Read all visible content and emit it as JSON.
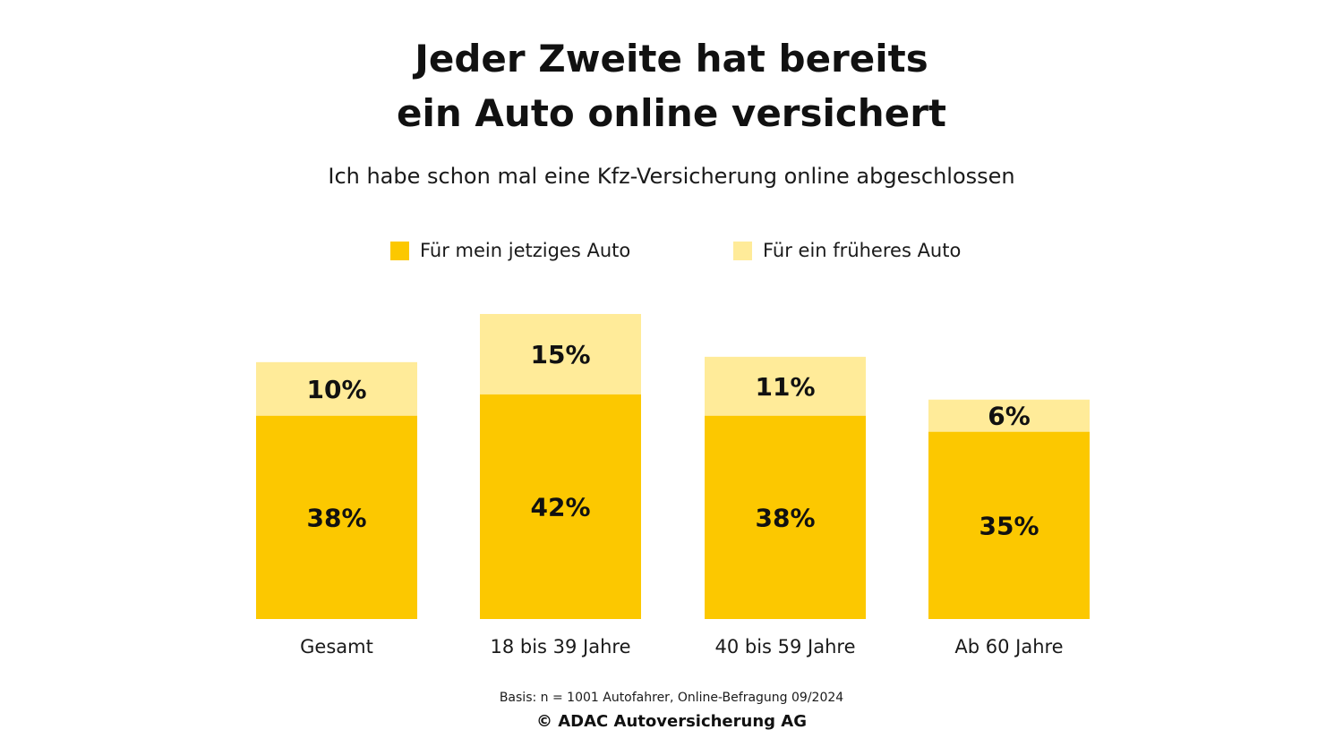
{
  "header": {
    "title_line1": "Jeder Zweite hat bereits",
    "title_line2": "ein Auto online versichert",
    "subtitle": "Ich habe schon mal eine Kfz-Versicherung online abgeschlossen"
  },
  "footer": {
    "source": "Basis: n = 1001 Autofahrer, Online-Befragung 09/2024",
    "copyright": "© ADAC Autoversicherung AG"
  },
  "colors": {
    "current": "#FCC800",
    "previous": "#FFEB99",
    "text": "#111111"
  },
  "chart_data": {
    "type": "bar",
    "stacked": true,
    "categories": [
      "Gesamt",
      "18 bis 39 Jahre",
      "40 bis 59 Jahre",
      "Ab 60 Jahre"
    ],
    "series": [
      {
        "name": "Für mein jetziges Auto",
        "values": [
          38,
          42,
          38,
          35
        ],
        "labels": [
          "38%",
          "42%",
          "38%",
          "35%"
        ]
      },
      {
        "name": "Für ein früheres Auto",
        "values": [
          10,
          15,
          11,
          6
        ],
        "labels": [
          "10%",
          "15%",
          "11%",
          "6%"
        ]
      }
    ],
    "ylim": [
      0,
      57
    ],
    "grid": false,
    "legend_position": "top",
    "unit": "%"
  }
}
